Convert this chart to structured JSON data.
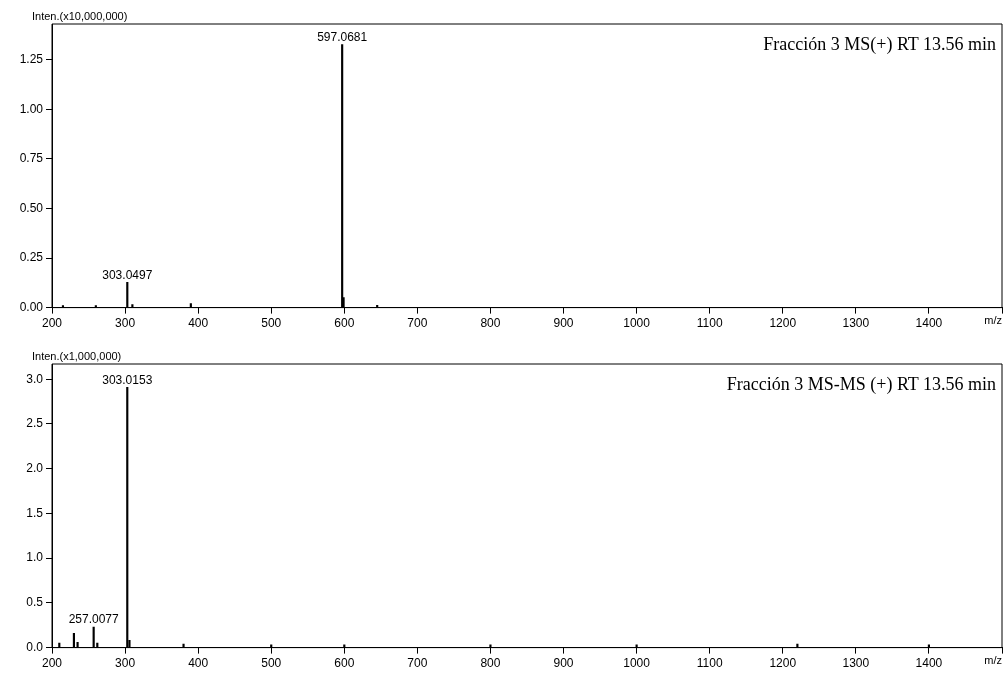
{
  "chart_data": [
    {
      "type": "bar",
      "title": "Fracción 3 MS(+) RT 13.56 min",
      "xlabel": "m/z",
      "ylabel": "Inten.(x10,000,000)",
      "x": [
        215,
        260,
        303.0497,
        310,
        390,
        597.0681,
        599,
        645
      ],
      "series": [
        {
          "color": "#000000",
          "values": [
            0.01,
            0.01,
            0.127,
            0.015,
            0.02,
            1.326,
            0.05,
            0.012
          ]
        }
      ],
      "xlim": [
        200,
        1500
      ],
      "xticks": [
        200,
        300,
        400,
        500,
        600,
        700,
        800,
        900,
        1000,
        1100,
        1200,
        1300,
        1400,
        {
          "value": 1500,
          "label": null
        }
      ],
      "ylim": [
        0,
        1.43
      ],
      "yticks": [
        {
          "value": 0,
          "label": "0.00"
        },
        0.25,
        {
          "value": 0.5,
          "label": "0.50"
        },
        0.75,
        {
          "value": 1,
          "label": "1.00"
        },
        1.25
      ],
      "annotations": [
        {
          "text": "597.0681",
          "x": 597.0681,
          "y": 1.326
        },
        {
          "text": "303.0497",
          "x": 303.0497,
          "y": 0.127
        }
      ]
    },
    {
      "type": "bar",
      "title": "Fracción 3 MS-MS (+) RT 13.56 min",
      "xlabel": "m/z",
      "ylabel": "Inten.(x1,000,000)",
      "x": [
        210,
        230,
        235,
        257.0077,
        262,
        303.0153,
        306,
        380,
        500,
        600,
        800,
        1000,
        1220,
        1400
      ],
      "series": [
        {
          "color": "#000000",
          "values": [
            0.05,
            0.16,
            0.06,
            0.23,
            0.05,
            2.91,
            0.08,
            0.04,
            0.03,
            0.03,
            0.03,
            0.03,
            0.04,
            0.03
          ]
        }
      ],
      "xlim": [
        200,
        1500
      ],
      "xticks": [
        200,
        300,
        400,
        500,
        600,
        700,
        800,
        900,
        1000,
        1100,
        1200,
        1300,
        1400,
        {
          "value": 1500,
          "label": null
        }
      ],
      "ylim": [
        0,
        3.17
      ],
      "yticks": [
        {
          "value": 0,
          "label": "0.0"
        },
        0.5,
        {
          "value": 1,
          "label": "1.0"
        },
        1.5,
        {
          "value": 2,
          "label": "2.0"
        },
        2.5,
        {
          "value": 3,
          "label": "3.0"
        }
      ],
      "annotations": [
        {
          "text": "303.0153",
          "x": 303.0153,
          "y": 2.91
        },
        {
          "text": "257.0077",
          "x": 257.0077,
          "y": 0.23
        }
      ]
    }
  ]
}
